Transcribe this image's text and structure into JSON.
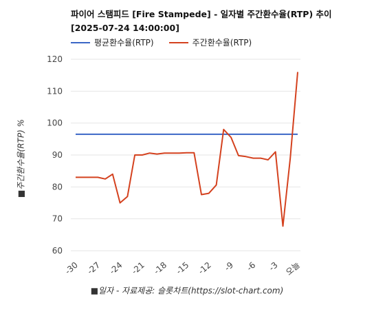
{
  "title_line1": "파이어 스탬피드 [Fire Stampede] - 일자별 주간환수율(RTP) 추이",
  "title_line2": "[2025-07-24 14:00:00]",
  "colors": {
    "avg": "#3a66c6",
    "weekly": "#d4411e",
    "grid": "#e6e6e6"
  },
  "chart_data": {
    "type": "line",
    "title": "파이어 스탬피드 [Fire Stampede] - 일자별 주간환수율(RTP) 추이 [2025-07-24 14:00:00]",
    "xlabel": "■일자 - 자료제공: 슬롯차트(https://slot-chart.com)",
    "ylabel": "■주간환수율(RTP) %",
    "ylim": [
      60,
      120
    ],
    "yticks": [
      60,
      70,
      80,
      90,
      100,
      110,
      120
    ],
    "xlim": [
      -30,
      0
    ],
    "xticks": [
      -30,
      -27,
      -24,
      -21,
      -18,
      -15,
      -12,
      -9,
      -6,
      -3,
      0
    ],
    "xtick_labels": [
      "-30",
      "-27",
      "-24",
      "-21",
      "-18",
      "-15",
      "-12",
      "-9",
      "-6",
      "-3",
      "오늘"
    ],
    "legend": "top-left",
    "grid": true,
    "series": [
      {
        "name": "평균환수율(RTP)",
        "x": [
          -30,
          0
        ],
        "y": [
          96.5,
          96.5
        ]
      },
      {
        "name": "주간환수율(RTP)",
        "x": [
          -30,
          -29,
          -28,
          -27,
          -26,
          -25,
          -24,
          -23,
          -22,
          -21,
          -20,
          -19,
          -18,
          -17,
          -16,
          -15,
          -14,
          -13,
          -12,
          -11,
          -10,
          -9,
          -8,
          -7,
          -6,
          -5,
          -4,
          -3,
          -2,
          -1,
          0
        ],
        "y": [
          83,
          83,
          83,
          83,
          82.5,
          84,
          75,
          77,
          90,
          90,
          90.6,
          90.3,
          90.6,
          90.6,
          90.6,
          90.7,
          90.7,
          77.6,
          78,
          80.6,
          98,
          95.5,
          89.8,
          89.5,
          89,
          89,
          88.5,
          91,
          67.7,
          89,
          116
        ]
      }
    ]
  }
}
